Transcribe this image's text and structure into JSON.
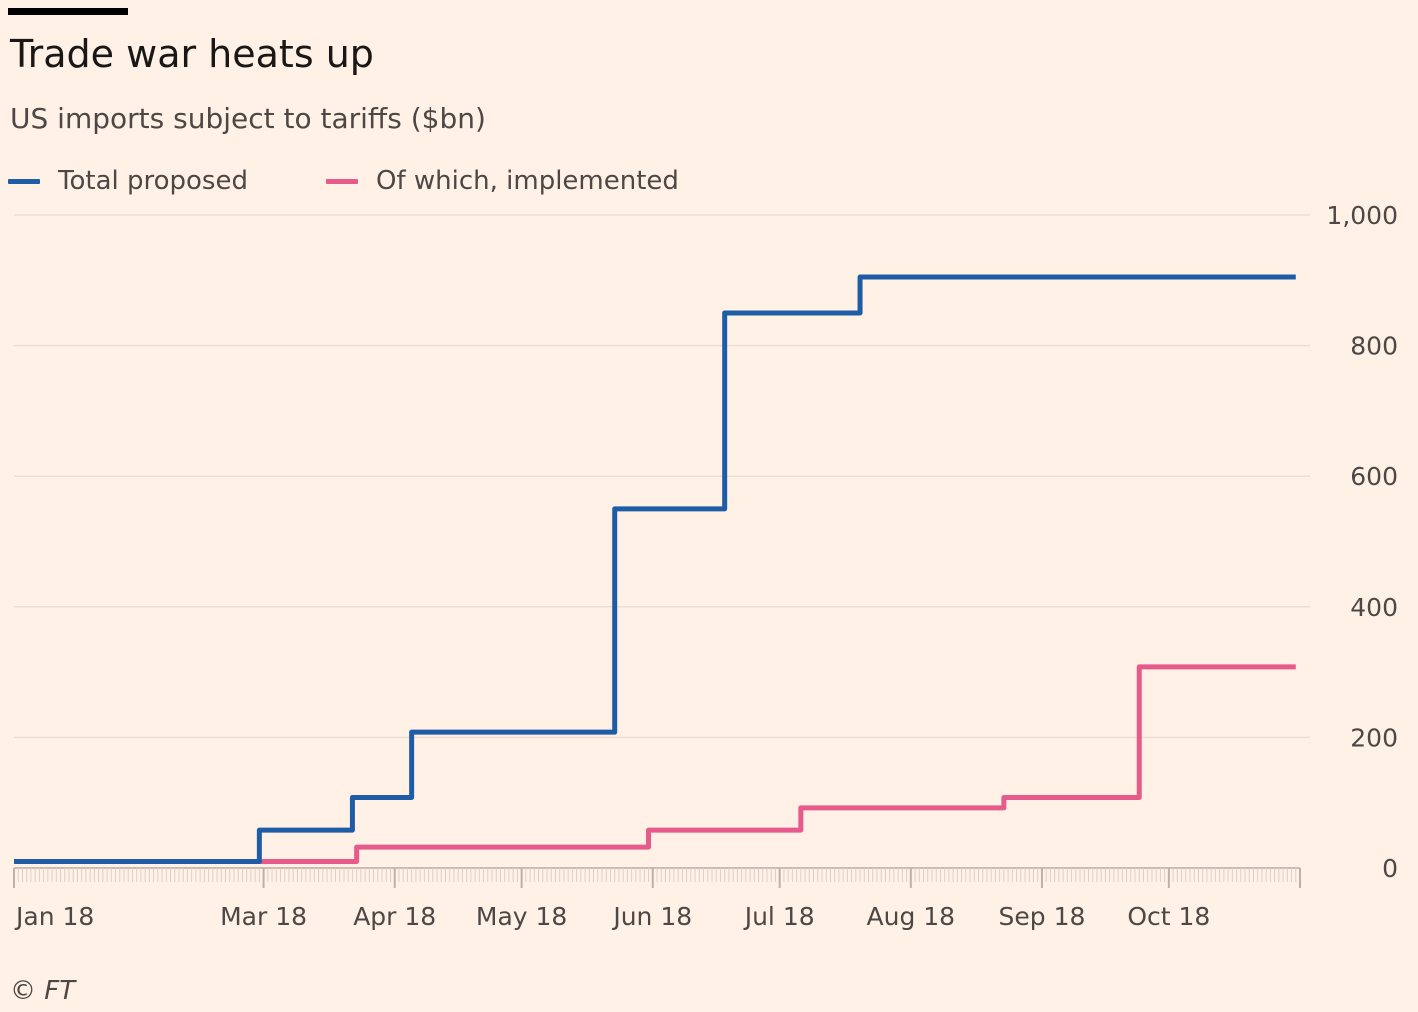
{
  "chart_data": {
    "type": "line",
    "title": "Trade war heats up",
    "subtitle": "US imports subject to tariffs ($bn)",
    "credit": "© FT",
    "step": true,
    "x_ticks": [
      "Jan 18",
      "Mar 18",
      "Apr 18",
      "May 18",
      "Jun 18",
      "Jul 18",
      "Aug 18",
      "Sep 18",
      "Oct 18"
    ],
    "x_tick_dates": [
      "2018-01-01",
      "2018-03-01",
      "2018-04-01",
      "2018-05-01",
      "2018-06-01",
      "2018-07-01",
      "2018-08-01",
      "2018-09-01",
      "2018-10-01"
    ],
    "x_range": [
      "2018-01-01",
      "2018-11-01"
    ],
    "y_ticks": [
      0,
      200,
      400,
      600,
      800,
      1000
    ],
    "y_tick_labels": [
      "0",
      "200",
      "400",
      "600",
      "800",
      "1,000"
    ],
    "ylim": [
      0,
      1000
    ],
    "y_axis_position": "right",
    "grid": true,
    "legend": "top-left",
    "series": [
      {
        "name": "Total proposed",
        "color": "#1e5ca6",
        "points": [
          {
            "x": "2018-01-01",
            "y": 10
          },
          {
            "x": "2018-02-28",
            "y": 10
          },
          {
            "x": "2018-02-28",
            "y": 58
          },
          {
            "x": "2018-03-22",
            "y": 58
          },
          {
            "x": "2018-03-22",
            "y": 108
          },
          {
            "x": "2018-04-05",
            "y": 108
          },
          {
            "x": "2018-04-05",
            "y": 208
          },
          {
            "x": "2018-05-23",
            "y": 208
          },
          {
            "x": "2018-05-23",
            "y": 550
          },
          {
            "x": "2018-06-18",
            "y": 550
          },
          {
            "x": "2018-06-18",
            "y": 850
          },
          {
            "x": "2018-07-20",
            "y": 850
          },
          {
            "x": "2018-07-20",
            "y": 905
          },
          {
            "x": "2018-10-31",
            "y": 905
          }
        ]
      },
      {
        "name": "Of which, implemented",
        "color": "#e65a8c",
        "points": [
          {
            "x": "2018-01-01",
            "y": 10
          },
          {
            "x": "2018-02-28",
            "y": 10
          },
          {
            "x": "2018-02-28",
            "y": 10
          },
          {
            "x": "2018-03-23",
            "y": 10
          },
          {
            "x": "2018-03-23",
            "y": 32
          },
          {
            "x": "2018-05-31",
            "y": 32
          },
          {
            "x": "2018-05-31",
            "y": 58
          },
          {
            "x": "2018-07-06",
            "y": 58
          },
          {
            "x": "2018-07-06",
            "y": 92
          },
          {
            "x": "2018-08-23",
            "y": 92
          },
          {
            "x": "2018-08-23",
            "y": 108
          },
          {
            "x": "2018-09-24",
            "y": 108
          },
          {
            "x": "2018-09-24",
            "y": 308
          },
          {
            "x": "2018-10-31",
            "y": 308
          }
        ]
      }
    ]
  },
  "colors": {
    "background": "#fff1e6",
    "grid": "#ebdfd4",
    "axis": "#c9bdb2",
    "text": "#4d4845",
    "title_rule": "#000000"
  }
}
